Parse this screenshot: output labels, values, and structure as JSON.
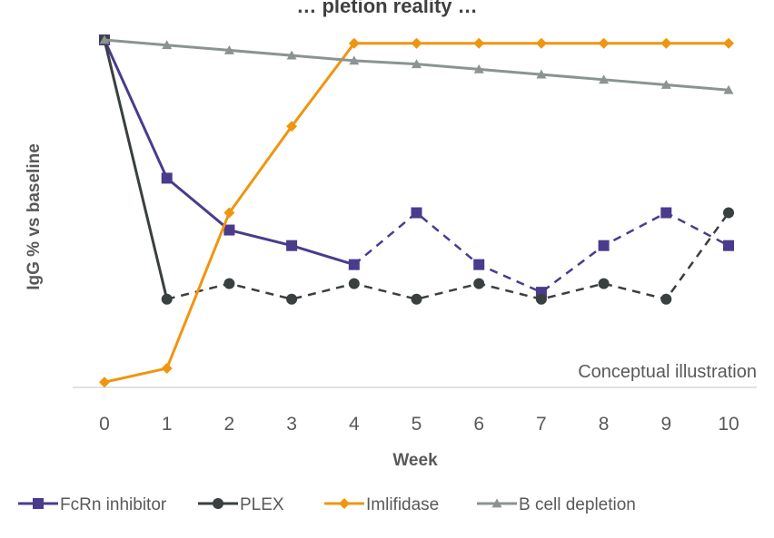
{
  "chart_data": {
    "type": "line",
    "title": "… pletion reality …",
    "xlabel": "Week",
    "ylabel": "IgG % vs baseline",
    "annotation": "Conceptual illustration",
    "x": [
      0,
      1,
      2,
      3,
      4,
      5,
      6,
      7,
      8,
      9,
      10
    ],
    "ylim": [
      0,
      100
    ],
    "grid": false,
    "legend": "bottom",
    "series": [
      {
        "name": "FcRn inhibitor",
        "color": "#4a3b8c",
        "marker": "square",
        "values": [
          100,
          60,
          45,
          40.5,
          35,
          50,
          35,
          27,
          40.5,
          50,
          40.5
        ],
        "dashed_from_index": 4
      },
      {
        "name": "PLEX",
        "color": "#3a3f3f",
        "marker": "circle",
        "values": [
          100,
          25,
          29.5,
          25,
          29.5,
          25,
          29.5,
          25,
          29.5,
          25,
          50
        ],
        "dashed_from_index": 1
      },
      {
        "name": "Imlifidase",
        "color": "#f0950f",
        "marker": "diamond",
        "values": [
          1,
          5,
          50,
          75,
          99,
          99,
          99,
          99,
          99,
          99,
          99
        ],
        "dashed_from_index": null
      },
      {
        "name": "B cell depletion",
        "color": "#8c9393",
        "marker": "triangle",
        "values": [
          100,
          98.5,
          97,
          95.5,
          94,
          93,
          91.5,
          90,
          88.5,
          87,
          85.5
        ],
        "dashed_from_index": null
      }
    ]
  }
}
